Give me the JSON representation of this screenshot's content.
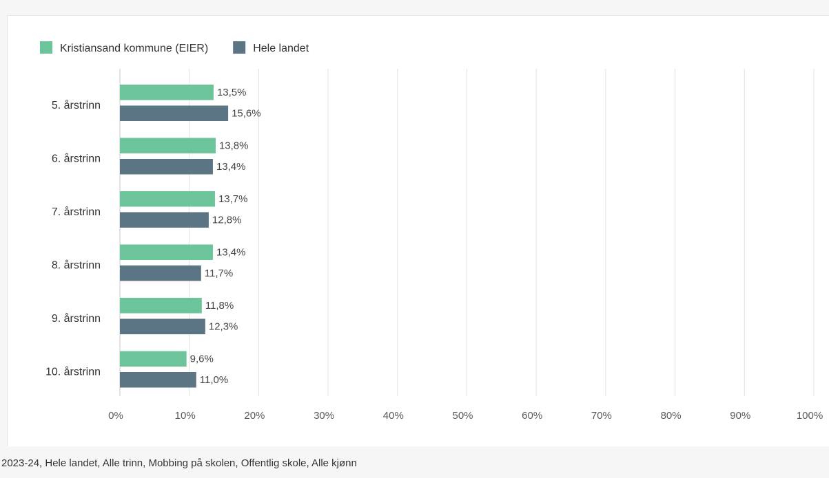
{
  "chart_data": {
    "type": "bar",
    "orientation": "horizontal",
    "categories": [
      "5. årstrinn",
      "6. årstrinn",
      "7. årstrinn",
      "8. årstrinn",
      "9. årstrinn",
      "10. årstrinn"
    ],
    "series": [
      {
        "name": "Kristiansand kommune (EIER)",
        "color": "#6cc49b",
        "values": [
          13.5,
          13.8,
          13.7,
          13.4,
          11.8,
          9.6
        ],
        "labels": [
          "13,5%",
          "13,8%",
          "13,7%",
          "13,4%",
          "11,8%",
          "9,6%"
        ]
      },
      {
        "name": "Hele landet",
        "color": "#5b7585",
        "values": [
          15.6,
          13.4,
          12.8,
          11.7,
          12.3,
          11.0
        ],
        "labels": [
          "15,6%",
          "13,4%",
          "12,8%",
          "11,7%",
          "12,3%",
          "11,0%"
        ]
      }
    ],
    "xlim": [
      0,
      100
    ],
    "xticks": [
      "0%",
      "10%",
      "20%",
      "30%",
      "40%",
      "50%",
      "60%",
      "70%",
      "80%",
      "90%",
      "100%"
    ],
    "grid": true,
    "legend_position": "top-left"
  },
  "footer": {
    "caption": "2023-24, Hele landet, Alle trinn, Mobbing på skolen, Offentlig skole, Alle kjønn"
  }
}
